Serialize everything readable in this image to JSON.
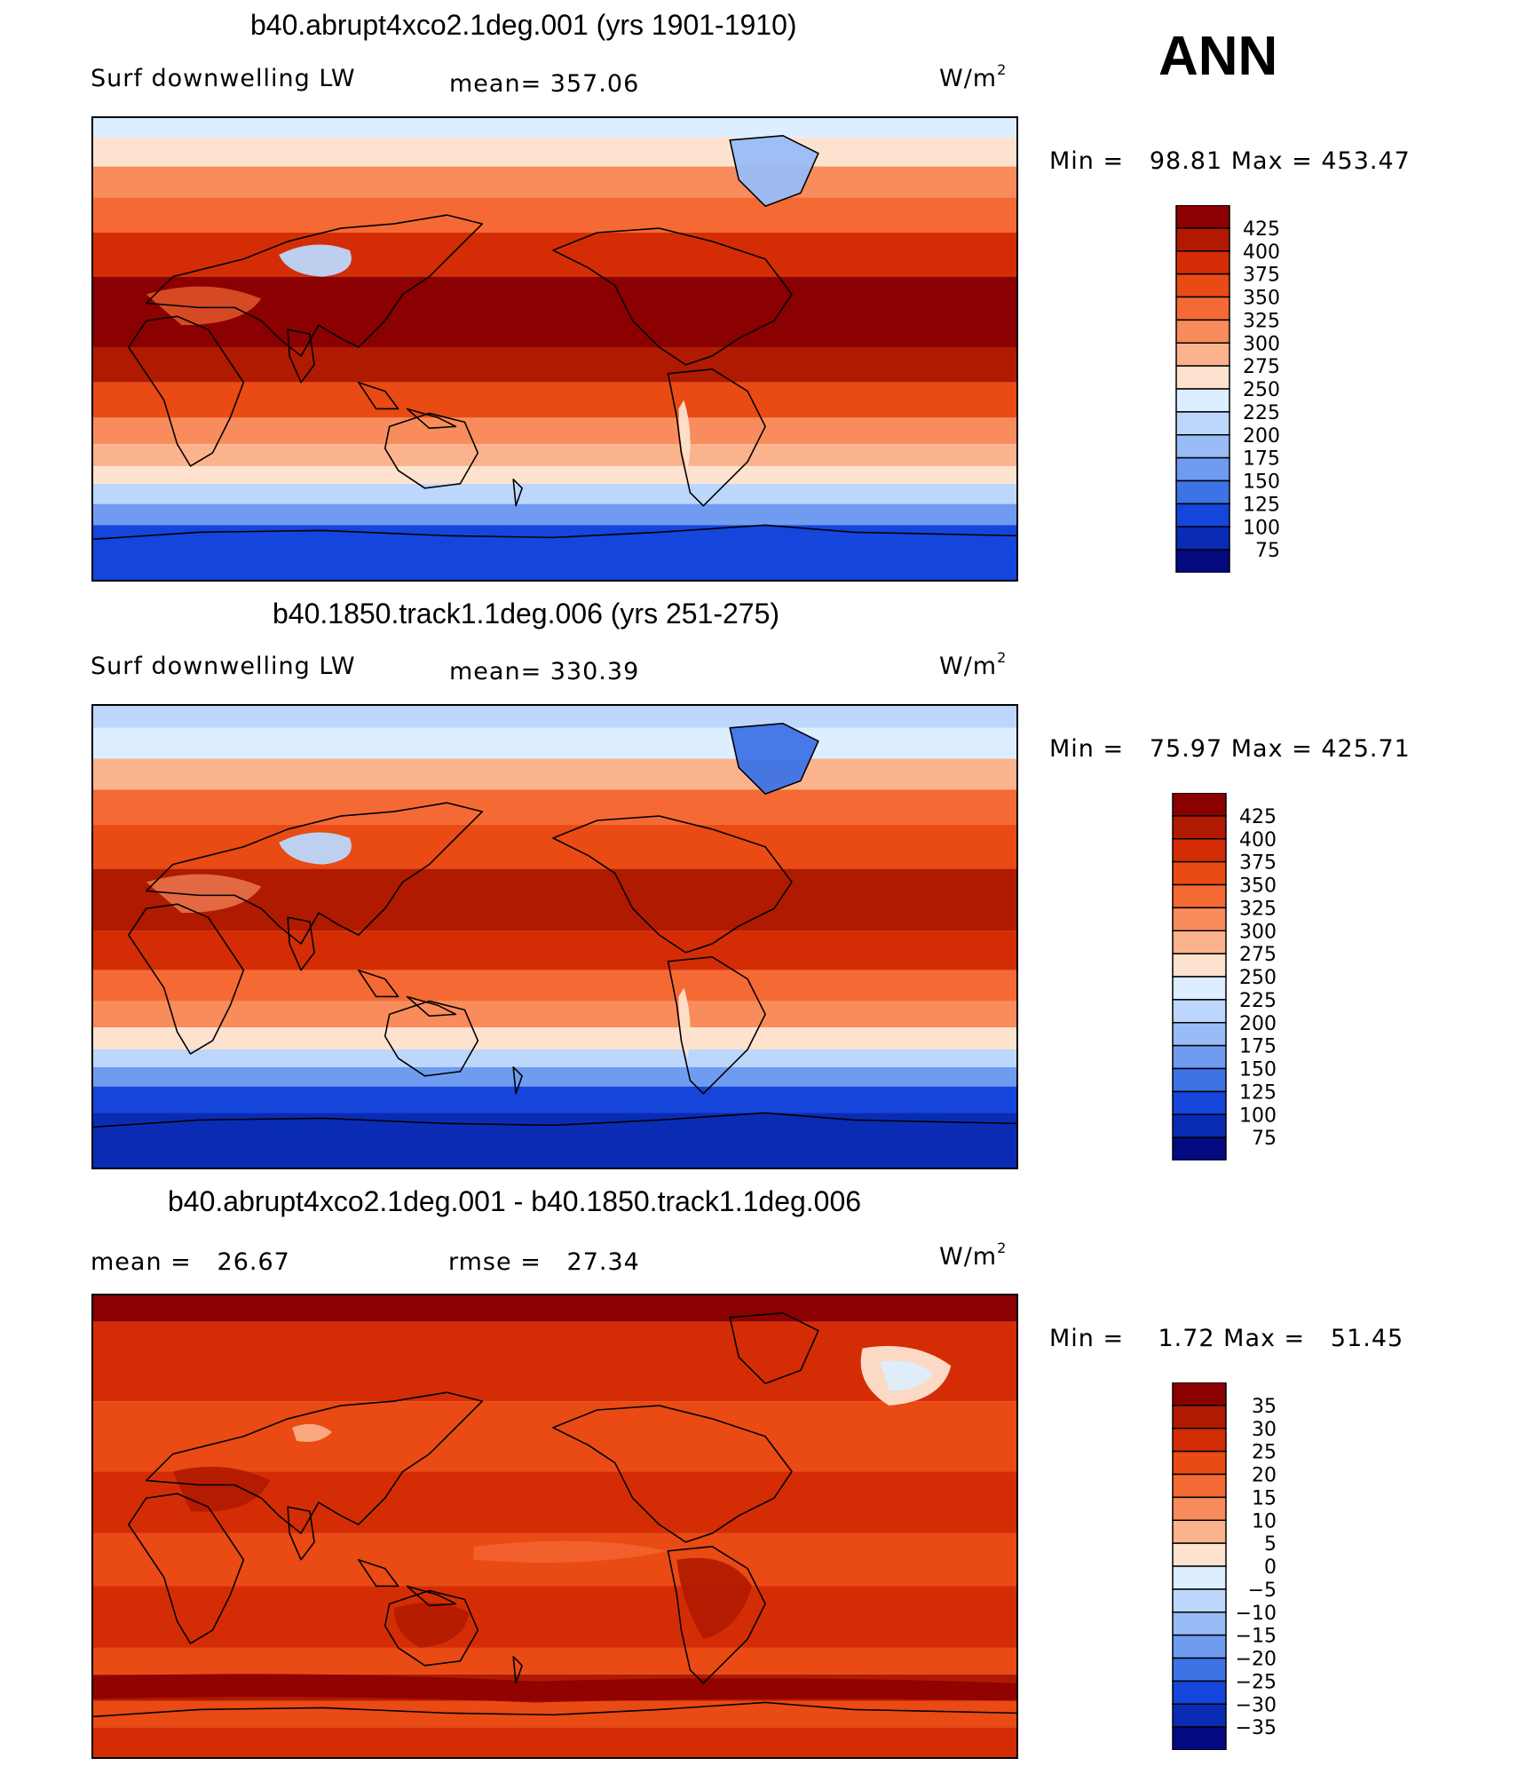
{
  "season": "ANN",
  "chart_data": [
    {
      "type": "heatmap",
      "title": "b40.abrupt4xco2.1deg.001 (yrs 1901-1910)",
      "variable": "Surf downwelling LW",
      "units": "W/m",
      "units_sup": "2",
      "mean_label": "mean= 357.06",
      "mean": 357.06,
      "min_max_label": "Min =   98.81 Max = 453.47",
      "min": 98.81,
      "max": 453.47,
      "colorbar": {
        "levels": [
          "425",
          "400",
          "375",
          "350",
          "325",
          "300",
          "275",
          "250",
          "225",
          "200",
          "175",
          "150",
          "125",
          "100",
          "75"
        ],
        "colors": [
          "#8b0000",
          "#b01a00",
          "#d42d06",
          "#ea4a14",
          "#f56a34",
          "#f88c5c",
          "#fbb38e",
          "#fde3cf",
          "#dceeff",
          "#bcd7fb",
          "#99bcf7",
          "#6f9cf0",
          "#3e73e6",
          "#1545da",
          "#0a2cb4",
          "#03097f"
        ]
      }
    },
    {
      "type": "heatmap",
      "title": "b40.1850.track1.1deg.006 (yrs 251-275)",
      "variable": "Surf downwelling LW",
      "units": "W/m",
      "units_sup": "2",
      "mean_label": "mean= 330.39",
      "mean": 330.39,
      "min_max_label": "Min =   75.97 Max = 425.71",
      "min": 75.97,
      "max": 425.71,
      "colorbar": {
        "levels": [
          "425",
          "400",
          "375",
          "350",
          "325",
          "300",
          "275",
          "250",
          "225",
          "200",
          "175",
          "150",
          "125",
          "100",
          "75"
        ],
        "colors": [
          "#8b0000",
          "#b01a00",
          "#d42d06",
          "#ea4a14",
          "#f56a34",
          "#f88c5c",
          "#fbb38e",
          "#fde3cf",
          "#dceeff",
          "#bcd7fb",
          "#99bcf7",
          "#6f9cf0",
          "#3e73e6",
          "#1545da",
          "#0a2cb4",
          "#03097f"
        ]
      }
    },
    {
      "type": "heatmap",
      "title": "b40.abrupt4xco2.1deg.001 - b40.1850.track1.1deg.006",
      "units": "W/m",
      "units_sup": "2",
      "mean_label": "mean =   26.67",
      "mean": 26.67,
      "rmse_label": "rmse =   27.34",
      "rmse": 27.34,
      "min_max_label": "Min =    1.72 Max =   51.45",
      "min": 1.72,
      "max": 51.45,
      "colorbar": {
        "levels": [
          "35",
          "30",
          "25",
          "20",
          "15",
          "10",
          "5",
          "0",
          "−5",
          "−10",
          "−15",
          "−20",
          "−25",
          "−30",
          "−35"
        ],
        "colors": [
          "#8b0000",
          "#b01a00",
          "#d42d06",
          "#ea4a14",
          "#f56a34",
          "#f88c5c",
          "#fbb38e",
          "#fde3cf",
          "#dceeff",
          "#bcd7fb",
          "#99bcf7",
          "#6f9cf0",
          "#3e73e6",
          "#1545da",
          "#0a2cb4",
          "#03097f"
        ]
      }
    }
  ]
}
